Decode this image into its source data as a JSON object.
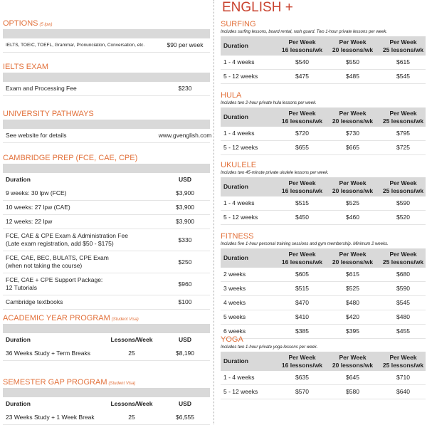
{
  "left": {
    "sections": [
      {
        "title": "OPTIONS",
        "note": "(5 lpw)",
        "rows": [
          [
            "IELTS, TOEIC, TOEFL, Grammar, Pronunciation, Conversation, etc.",
            "$90 per week"
          ]
        ]
      },
      {
        "title": "IELTS EXAM",
        "rows": [
          [
            "Exam and Processing Fee",
            "$230"
          ]
        ]
      },
      {
        "title": "UNIVERSITY PATHWAYS",
        "rows": [
          [
            "See website for details",
            "www.gvenglish.com"
          ]
        ]
      },
      {
        "title": "CAMBRIDGE PREP (FCE, CAE, CPE)",
        "header": [
          "Duration",
          "USD"
        ],
        "rows": [
          [
            "9 weeks: 30 lpw (FCE)",
            "$3,900"
          ],
          [
            "10 weeks: 27 lpw (CAE)",
            "$3,900"
          ],
          [
            "12 weeks: 22 lpw",
            "$3,900"
          ],
          [
            "FCE, CAE & CPE Exam & Administration Fee\n(Late exam registration, add $50 - $175)",
            "$330"
          ],
          [
            "FCE, CAE, BEC, BULATS, CPE Exam\n(when not taking the course)",
            "$250"
          ],
          [
            "FCE, CAE + CPE Support Package:\n12 Tutorials",
            "$960"
          ],
          [
            "Cambridge textbooks",
            "$100"
          ]
        ]
      },
      {
        "title": "ACADEMIC YEAR PROGRAM",
        "note": "(Student Visa)",
        "header": [
          "Duration",
          "Lessons/Week",
          "USD"
        ],
        "rows": [
          [
            "36 Weeks Study + Term Breaks",
            "25",
            "$8,190"
          ]
        ]
      },
      {
        "title": "SEMESTER GAP PROGRAM",
        "note": "(Student Visa)",
        "header": [
          "Duration",
          "Lessons/Week",
          "USD"
        ],
        "rows": [
          [
            "23 Weeks Study + 1 Week Break",
            "25",
            "$6,555"
          ]
        ]
      }
    ]
  },
  "right": {
    "title": "ENGLISH +",
    "sections": [
      {
        "title": "SURFING",
        "description": "Includes surfing lessons, board rental, rash guard. Two 1-hour private lessons per week.",
        "header": [
          "Duration",
          "Per Week\n16 lessons/wk",
          "Per Week\n20 lessons/wk",
          "Per Week\n25 lessons/wk"
        ],
        "rows": [
          [
            "1 - 4 weeks",
            "$540",
            "$550",
            "$615"
          ],
          [
            "5 - 12 weeks",
            "$475",
            "$485",
            "$545"
          ]
        ]
      },
      {
        "title": "HULA",
        "description": "Includes two 2-hour private hula lessons per week.",
        "header": [
          "Duration",
          "Per Week\n16 lessons/wk",
          "Per Week\n20 lessons/wk",
          "Per Week\n25 lessons/wk"
        ],
        "rows": [
          [
            "1 - 4 weeks",
            "$720",
            "$730",
            "$795"
          ],
          [
            "5 - 12 weeks",
            "$655",
            "$665",
            "$725"
          ]
        ]
      },
      {
        "title": "UKULELE",
        "description": "Includes two 45-minute private ukulele lessons per week.",
        "header": [
          "Duration",
          "Per Week\n16 lessons/wk",
          "Per Week\n20 lessons/wk",
          "Per Week\n25 lessons/wk"
        ],
        "rows": [
          [
            "1 - 4  weeks",
            "$515",
            "$525",
            "$590"
          ],
          [
            "5 - 12 weeks",
            "$450",
            "$460",
            "$520"
          ]
        ]
      },
      {
        "title": "FITNESS",
        "description": "Includes five 1-hour personal training sessions and gym membership. Minimum 2 weeks.",
        "header": [
          "Duration",
          "Per Week\n16 lessons/wk",
          "Per Week\n20 lessons/wk",
          "Per Week\n25 lessons/wk"
        ],
        "rows": [
          [
            "2 weeks",
            "$605",
            "$615",
            "$680"
          ],
          [
            "3 weeks",
            "$515",
            "$525",
            "$590"
          ],
          [
            "4 weeks",
            "$470",
            "$480",
            "$545"
          ],
          [
            "5 weeks",
            "$410",
            "$420",
            "$480"
          ],
          [
            "6 weeks",
            "$385",
            "$395",
            "$455"
          ]
        ]
      },
      {
        "title": "YOGA",
        "description": "Includes two 1-hour private yoga lessons per week.",
        "header": [
          "Duration",
          "Per Week\n16 lessons/wk",
          "Per Week\n20 lessons/wk",
          "Per Week\n25 lessons/wk"
        ],
        "rows": [
          [
            "1 - 4 weeks",
            "$635",
            "$645",
            "$710"
          ],
          [
            "5 - 12 weeks",
            "$570",
            "$580",
            "$640"
          ]
        ]
      }
    ]
  }
}
